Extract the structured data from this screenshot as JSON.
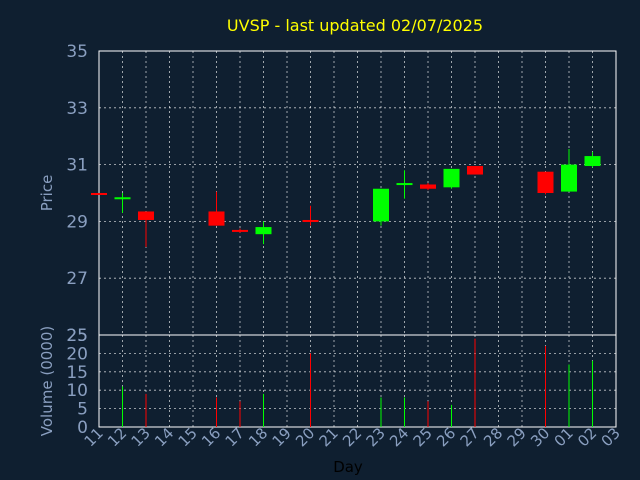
{
  "chart_data": {
    "type": "candlestick",
    "title": "UVSP - last updated 02/07/2025",
    "price_panel": {
      "ylabel": "Price",
      "ylim": [
        25,
        35
      ],
      "yticks": [
        "25",
        "27",
        "29",
        "31",
        "33",
        "35"
      ]
    },
    "volume_panel": {
      "ylabel": "Volume (0000)",
      "ylim": [
        0,
        25
      ],
      "yticks": [
        "0",
        "5",
        "10",
        "15",
        "20",
        "25"
      ]
    },
    "xlabel": "Day",
    "x_tick_labels": [
      "11",
      "12",
      "13",
      "14",
      "15",
      "16",
      "17",
      "18",
      "19",
      "20",
      "21",
      "22",
      "23",
      "24",
      "25",
      "26",
      "27",
      "28",
      "29",
      "30",
      "01",
      "02",
      "03"
    ],
    "colors": {
      "up": "#00ff00",
      "down": "#ff0000",
      "background": "#0f1f30",
      "title": "#ffff00",
      "axis_text": "#8a9fc0"
    },
    "candles": [
      {
        "day": "11",
        "open": 30.0,
        "high": 30.0,
        "low": 30.0,
        "close": 30.0,
        "volume": 0,
        "dir": "down"
      },
      {
        "day": "12",
        "open": 29.8,
        "high": 30.0,
        "low": 29.3,
        "close": 29.85,
        "volume": 11,
        "dir": "up"
      },
      {
        "day": "13",
        "open": 29.35,
        "high": 29.35,
        "low": 28.1,
        "close": 29.05,
        "volume": 9,
        "dir": "down"
      },
      {
        "day": "16",
        "open": 29.35,
        "high": 30.05,
        "low": 28.85,
        "close": 28.85,
        "volume": 8,
        "dir": "down"
      },
      {
        "day": "17",
        "open": 28.7,
        "high": 28.75,
        "low": 28.6,
        "close": 28.65,
        "volume": 7,
        "dir": "down"
      },
      {
        "day": "18",
        "open": 28.55,
        "high": 29.0,
        "low": 28.2,
        "close": 28.8,
        "volume": 9,
        "dir": "up"
      },
      {
        "day": "20",
        "open": 29.05,
        "high": 29.55,
        "low": 28.85,
        "close": 29.05,
        "volume": 20,
        "dir": "down"
      },
      {
        "day": "23",
        "open": 29.0,
        "high": 30.15,
        "low": 28.85,
        "close": 30.15,
        "volume": 8,
        "dir": "up"
      },
      {
        "day": "24",
        "open": 30.3,
        "high": 30.8,
        "low": 29.8,
        "close": 30.35,
        "volume": 8,
        "dir": "up"
      },
      {
        "day": "25",
        "open": 30.3,
        "high": 30.35,
        "low": 30.1,
        "close": 30.15,
        "volume": 7,
        "dir": "down"
      },
      {
        "day": "26",
        "open": 30.2,
        "high": 30.85,
        "low": 30.15,
        "close": 30.85,
        "volume": 6,
        "dir": "up"
      },
      {
        "day": "27",
        "open": 30.95,
        "high": 30.95,
        "low": 30.65,
        "close": 30.65,
        "volume": 24,
        "dir": "down"
      },
      {
        "day": "30",
        "open": 30.75,
        "high": 30.75,
        "low": 29.95,
        "close": 30.0,
        "volume": 22,
        "dir": "down"
      },
      {
        "day": "01",
        "open": 30.05,
        "high": 31.55,
        "low": 30.05,
        "close": 31.0,
        "volume": 17,
        "dir": "up"
      },
      {
        "day": "02",
        "open": 30.95,
        "high": 31.45,
        "low": 30.9,
        "close": 31.3,
        "volume": 18,
        "dir": "up"
      }
    ]
  }
}
